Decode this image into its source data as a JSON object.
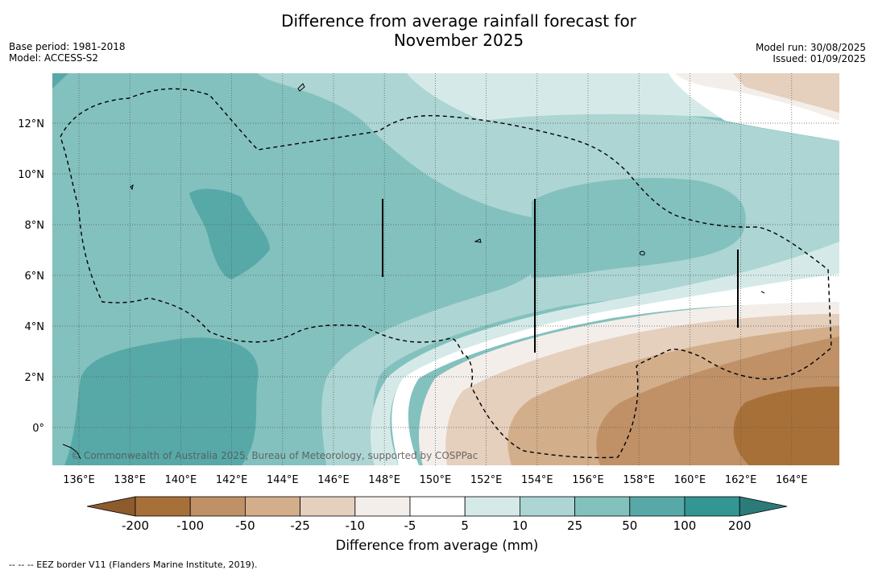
{
  "title_line1": "Difference from average rainfall forecast for",
  "title_line2": "November 2025",
  "meta_left": {
    "base_period": "Base period: 1981-2018",
    "model": "Model: ACCESS-S2"
  },
  "meta_right": {
    "model_run": "Model run: 30/08/2025",
    "issued": "Issued: 01/09/2025"
  },
  "map": {
    "lon_labels": [
      "136°E",
      "138°E",
      "140°E",
      "142°E",
      "144°E",
      "146°E",
      "148°E",
      "150°E",
      "152°E",
      "154°E",
      "156°E",
      "158°E",
      "160°E",
      "162°E",
      "164°E"
    ],
    "lat_labels": [
      "12°N",
      "10°N",
      "8°N",
      "6°N",
      "4°N",
      "2°N",
      "0°"
    ],
    "copyright": "© Commonwealth of Australia 2025, Bureau of Meteorology, supported by COSPPac"
  },
  "colorbar": {
    "title": "Difference from average (mm)",
    "tick_labels": [
      "-200",
      "-100",
      "-50",
      "-25",
      "-10",
      "-5",
      "5",
      "10",
      "25",
      "50",
      "100",
      "200"
    ],
    "colors": [
      "#a87039",
      "#c09167",
      "#d2ae8b",
      "#e5cfbd",
      "#f3eee9",
      "#ffffff",
      "#d5eae8",
      "#acd5d3",
      "#83c1be",
      "#57a9a8",
      "#349692"
    ],
    "extend_low_color": "#8d5b2c",
    "extend_high_color": "#2b7c79"
  },
  "footnote": "--  --  -- EEZ border V11 (Flanders Marine Institute, 2019)."
}
